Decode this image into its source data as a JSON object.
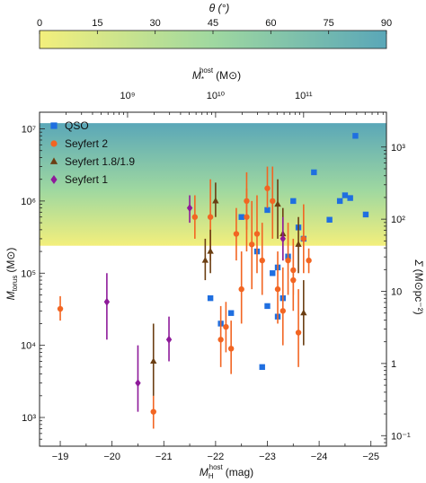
{
  "chart_data": {
    "type": "scatter",
    "colorbar": {
      "label": "θ (°)",
      "ticks": [
        0,
        15,
        30,
        45,
        60,
        75,
        90
      ],
      "range": [
        0,
        90
      ],
      "colors": [
        "#f3ef7c",
        "#9fd8a0",
        "#5aa7b8"
      ]
    },
    "top_axis": {
      "label": "M*host (M⊙)",
      "label_main": "M",
      "label_sub": "*",
      "label_sup": "host",
      "label_unit": "(M⊙)",
      "ticks": [
        "10⁹",
        "10¹⁰",
        "10¹¹"
      ],
      "tick_positions_mag": [
        -20.3,
        -22.0,
        -23.7
      ]
    },
    "xaxis": {
      "label": "MHhost (mag)",
      "label_main": "M",
      "label_sub": "H",
      "label_sup": "host",
      "label_unit": "(mag)",
      "ticks": [
        "−19",
        "−20",
        "−21",
        "−22",
        "−23",
        "−24",
        "−25"
      ],
      "tick_values": [
        -19,
        -20,
        -21,
        -22,
        -23,
        -24,
        -25
      ],
      "range": [
        -18.6,
        -25.3
      ],
      "inverted": true
    },
    "yaxis": {
      "label": "Mtorus (M⊙)",
      "label_main": "M",
      "label_sub": "torus",
      "label_unit": "(M⊙)",
      "scale": "log",
      "ticks": [
        "10³",
        "10⁴",
        "10⁵",
        "10⁶",
        "10⁷"
      ],
      "tick_values": [
        1000,
        10000,
        100000,
        1000000,
        10000000
      ],
      "range": [
        400,
        17000000
      ]
    },
    "right_axis": {
      "label": "Σ (M⊙pc⁻²)",
      "label_main": "Σ",
      "label_unit": "(M⊙pc⁻²)",
      "scale": "log",
      "ticks": [
        "10³",
        "10²",
        "10",
        "1",
        "10⁻¹"
      ],
      "tick_values_left_units": [
        5600000,
        560000,
        56000,
        5600,
        560
      ]
    },
    "shaded_band": {
      "ymin": 240000,
      "ymax": 12000000
    },
    "legend_position": "top-left",
    "series": [
      {
        "name": "QSO",
        "color": "#1f6fe0",
        "marker": "square",
        "points": [
          {
            "x": -21.9,
            "y": 45000
          },
          {
            "x": -22.1,
            "y": 20000
          },
          {
            "x": -22.3,
            "y": 28000
          },
          {
            "x": -22.5,
            "y": 600000
          },
          {
            "x": -22.8,
            "y": 200000
          },
          {
            "x": -23.0,
            "y": 35000
          },
          {
            "x": -22.9,
            "y": 5000
          },
          {
            "x": -23.0,
            "y": 750000
          },
          {
            "x": -23.1,
            "y": 100000
          },
          {
            "x": -23.2,
            "y": 25000
          },
          {
            "x": -23.2,
            "y": 120000
          },
          {
            "x": -23.3,
            "y": 45000
          },
          {
            "x": -23.4,
            "y": 170000
          },
          {
            "x": -23.5,
            "y": 1000000
          },
          {
            "x": -23.6,
            "y": 430000
          },
          {
            "x": -23.7,
            "y": 300000
          },
          {
            "x": -23.9,
            "y": 2500000
          },
          {
            "x": -24.2,
            "y": 550000
          },
          {
            "x": -24.4,
            "y": 1000000
          },
          {
            "x": -24.5,
            "y": 1200000
          },
          {
            "x": -24.6,
            "y": 1100000
          },
          {
            "x": -24.7,
            "y": 8000000
          },
          {
            "x": -24.9,
            "y": 650000
          }
        ]
      },
      {
        "name": "Seyfert 2",
        "color": "#f26522",
        "marker": "circle",
        "points": [
          {
            "x": -19.0,
            "y": 32000,
            "ylo": 22000,
            "yhi": 48000
          },
          {
            "x": -20.8,
            "y": 1200,
            "ylo": 700,
            "yhi": 2000
          },
          {
            "x": -21.6,
            "y": 600000,
            "ylo": 300000,
            "yhi": 1200000
          },
          {
            "x": -21.9,
            "y": 600000,
            "ylo": 150000,
            "yhi": 2000000
          },
          {
            "x": -22.1,
            "y": 12000,
            "ylo": 5000,
            "yhi": 35000
          },
          {
            "x": -22.2,
            "y": 18000,
            "ylo": 8000,
            "yhi": 40000
          },
          {
            "x": -22.3,
            "y": 9000,
            "ylo": 4000,
            "yhi": 22000
          },
          {
            "x": -22.4,
            "y": 350000,
            "ylo": 150000,
            "yhi": 800000
          },
          {
            "x": -22.5,
            "y": 60000,
            "ylo": 20000,
            "yhi": 200000
          },
          {
            "x": -22.6,
            "y": 1000000,
            "ylo": 400000,
            "yhi": 2500000
          },
          {
            "x": -22.6,
            "y": 600000,
            "ylo": 200000,
            "yhi": 1500000
          },
          {
            "x": -22.7,
            "y": 250000,
            "ylo": 60000,
            "yhi": 1000000
          },
          {
            "x": -22.8,
            "y": 350000,
            "ylo": 100000,
            "yhi": 1200000
          },
          {
            "x": -22.9,
            "y": 150000,
            "ylo": 50000,
            "yhi": 500000
          },
          {
            "x": -23.0,
            "y": 1500000,
            "ylo": 800000,
            "yhi": 3000000
          },
          {
            "x": -23.1,
            "y": 1000000,
            "ylo": 300000,
            "yhi": 3000000
          },
          {
            "x": -23.2,
            "y": 60000,
            "ylo": 20000,
            "yhi": 200000
          },
          {
            "x": -23.3,
            "y": 30000,
            "ylo": 10000,
            "yhi": 120000
          },
          {
            "x": -23.4,
            "y": 150000,
            "ylo": 50000,
            "yhi": 500000
          },
          {
            "x": -23.5,
            "y": 110000,
            "ylo": 50000,
            "yhi": 300000
          },
          {
            "x": -23.5,
            "y": 80000,
            "ylo": 30000,
            "yhi": 250000
          },
          {
            "x": -23.6,
            "y": 15000,
            "ylo": 5000,
            "yhi": 60000
          },
          {
            "x": -23.7,
            "y": 300000,
            "ylo": 100000,
            "yhi": 900000
          },
          {
            "x": -23.8,
            "y": 150000,
            "ylo": 100000,
            "yhi": 220000
          }
        ]
      },
      {
        "name": "Seyfert 1.8/1.9",
        "color": "#6b3e12",
        "marker": "triangle",
        "points": [
          {
            "x": -20.8,
            "y": 6000,
            "ylo": 2000,
            "yhi": 20000
          },
          {
            "x": -21.8,
            "y": 150000,
            "ylo": 80000,
            "yhi": 300000
          },
          {
            "x": -21.9,
            "y": 200000,
            "ylo": 100000,
            "yhi": 400000
          },
          {
            "x": -22.0,
            "y": 1000000,
            "ylo": 600000,
            "yhi": 1800000
          },
          {
            "x": -23.2,
            "y": 900000,
            "ylo": 300000,
            "yhi": 2000000
          },
          {
            "x": -23.3,
            "y": 350000,
            "ylo": 150000,
            "yhi": 800000
          },
          {
            "x": -23.6,
            "y": 250000,
            "ylo": 100000,
            "yhi": 600000
          },
          {
            "x": -23.7,
            "y": 28000,
            "ylo": 10000,
            "yhi": 80000
          }
        ]
      },
      {
        "name": "Seyfert 1",
        "color": "#8e1a9a",
        "marker": "diamond",
        "points": [
          {
            "x": -19.9,
            "y": 40000,
            "ylo": 12000,
            "yhi": 100000
          },
          {
            "x": -20.5,
            "y": 3000,
            "ylo": 1200,
            "yhi": 10000
          },
          {
            "x": -21.1,
            "y": 12000,
            "ylo": 6000,
            "yhi": 25000
          },
          {
            "x": -21.5,
            "y": 800000,
            "ylo": 500000,
            "yhi": 1200000
          },
          {
            "x": -23.3,
            "y": 300000,
            "ylo": 150000,
            "yhi": 600000
          }
        ]
      }
    ]
  }
}
